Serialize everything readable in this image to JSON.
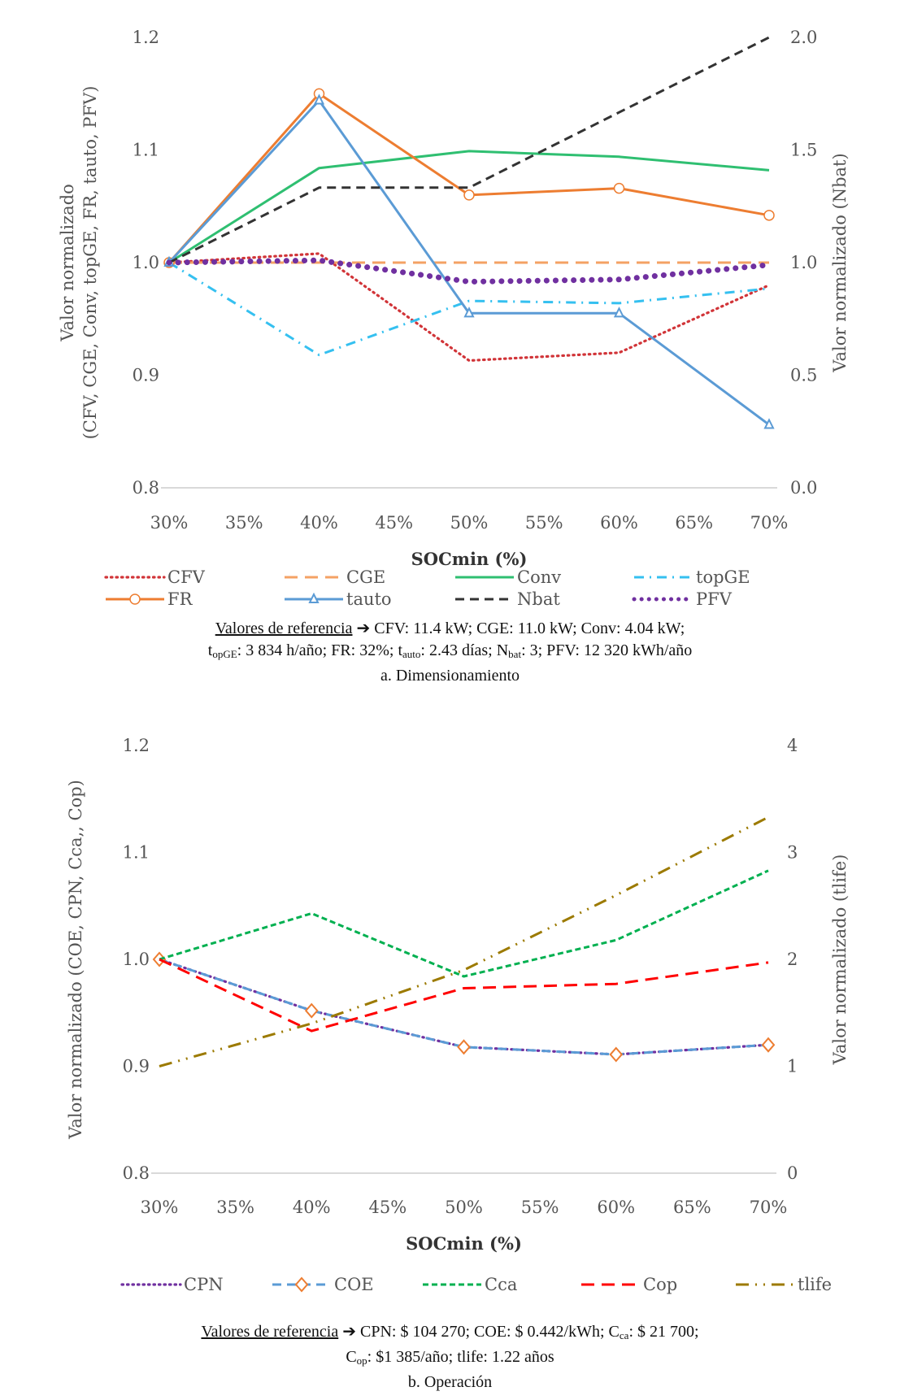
{
  "chart_data": [
    {
      "type": "line",
      "id": "a",
      "caption": "a. Dimensionamiento",
      "xlabel": "SOCmin (%)",
      "ylabel_left": "Valor normalizado",
      "ylabel_left_line2": "(CFV, CGE, Conv, topGE, FR, tauto, PFV)",
      "ylabel_right": "Valor normalizado (Nbat)",
      "x": [
        30,
        40,
        50,
        60,
        70
      ],
      "x_ticks": [
        "30%",
        "35%",
        "40%",
        "45%",
        "50%",
        "55%",
        "60%",
        "65%",
        "70%"
      ],
      "ylim_left": [
        0.8,
        1.2
      ],
      "y_ticks_left": [
        "0.8",
        "0.9",
        "1.0",
        "1.1",
        "1.2"
      ],
      "ylim_right": [
        0.0,
        2.0
      ],
      "y_ticks_right": [
        "0.0",
        "0.5",
        "1.0",
        "1.5",
        "2.0"
      ],
      "legend_position": "bottom",
      "series": [
        {
          "name": "CFV",
          "axis": "left",
          "color": "#d13438",
          "style": "dotted",
          "values": [
            1.0,
            1.008,
            0.913,
            0.92,
            0.98
          ]
        },
        {
          "name": "CGE",
          "axis": "left",
          "color": "#f4a264",
          "style": "longdash",
          "values": [
            1.0,
            1.0,
            1.0,
            1.0,
            1.0
          ]
        },
        {
          "name": "Conv",
          "axis": "left",
          "color": "#2fbf71",
          "style": "solid",
          "values": [
            1.0,
            1.084,
            1.099,
            1.094,
            1.082
          ]
        },
        {
          "name": "topGE",
          "axis": "left",
          "color": "#35c0f0",
          "style": "dashdot",
          "values": [
            1.0,
            0.918,
            0.966,
            0.964,
            0.977
          ]
        },
        {
          "name": "FR",
          "axis": "left",
          "color": "#ed7d31",
          "style": "solid",
          "marker": "circle",
          "values": [
            1.0,
            1.15,
            1.06,
            1.066,
            1.042
          ]
        },
        {
          "name": "tauto",
          "axis": "left",
          "color": "#5b9bd5",
          "style": "solid",
          "marker": "triangle",
          "values": [
            1.0,
            1.144,
            0.955,
            0.955,
            0.856
          ]
        },
        {
          "name": "Nbat",
          "axis": "right",
          "color": "#333333",
          "style": "dash",
          "values": [
            1.0,
            1.333,
            1.333,
            1.667,
            2.0
          ]
        },
        {
          "name": "PFV",
          "axis": "left",
          "color": "#7030a0",
          "style": "bigdots",
          "values": [
            1.0,
            1.002,
            0.983,
            0.985,
            0.998
          ]
        }
      ],
      "reference": {
        "label": "Valores de referencia",
        "line1": "CFV: 11.4 kW; CGE: 11.0 kW; Conv: 4.04 kW;",
        "line2_parts": [
          {
            "t": "t"
          },
          {
            "sub": "opGE"
          },
          {
            "t": ": 3 834 h/año; FR: 32%; t"
          },
          {
            "sub": "auto"
          },
          {
            "t": ": 2.43 días; N"
          },
          {
            "sub": "bat"
          },
          {
            "t": ": 3; PFV: 12 320 kWh/año"
          }
        ]
      }
    },
    {
      "type": "line",
      "id": "b",
      "caption": "b. Operación",
      "xlabel": "SOCmin (%)",
      "ylabel_left": "Valor normalizado (COE, CPN, Cca,, Cop)",
      "ylabel_right": "Valor normalizado (tlife)",
      "x": [
        30,
        40,
        50,
        60,
        70
      ],
      "x_ticks": [
        "30%",
        "35%",
        "40%",
        "45%",
        "50%",
        "55%",
        "60%",
        "65%",
        "70%"
      ],
      "ylim_left": [
        0.8,
        1.2
      ],
      "y_ticks_left": [
        "0.8",
        "0.9",
        "1.0",
        "1.1",
        "1.2"
      ],
      "ylim_right": [
        0,
        4
      ],
      "y_ticks_right": [
        "0",
        "1",
        "2",
        "3",
        "4"
      ],
      "legend_position": "bottom",
      "series": [
        {
          "name": "CPN",
          "axis": "left",
          "color": "#7030a0",
          "style": "dotted",
          "values": [
            1.0,
            0.952,
            0.918,
            0.911,
            0.92
          ]
        },
        {
          "name": "COE",
          "axis": "left",
          "color": "#5b9bd5",
          "style": "dash",
          "marker": "diamond",
          "marker_color": "#ed7d31",
          "values": [
            1.0,
            0.952,
            0.918,
            0.911,
            0.92
          ]
        },
        {
          "name": "Cca",
          "axis": "left",
          "color": "#00b050",
          "style": "shortdash",
          "values": [
            1.0,
            1.043,
            0.984,
            1.018,
            1.083
          ]
        },
        {
          "name": "Cop",
          "axis": "left",
          "color": "#ff0000",
          "style": "longdash",
          "values": [
            1.0,
            0.933,
            0.973,
            0.977,
            0.997
          ]
        },
        {
          "name": "tlife",
          "axis": "right",
          "color": "#9c7a00",
          "style": "dashdotdot",
          "values": [
            1.0,
            1.4,
            1.9,
            2.6,
            3.33
          ]
        }
      ],
      "reference": {
        "label": "Valores de referencia",
        "line1_parts": [
          {
            "t": "CPN: $ 104 270; COE: $ 0.442/kWh; C"
          },
          {
            "sub": "ca"
          },
          {
            "t": ": $ 21 700;"
          }
        ],
        "line2_parts": [
          {
            "t": "C"
          },
          {
            "sub": "op"
          },
          {
            "t": ": $1 385/año; tlife: 1.22 años"
          }
        ]
      }
    }
  ]
}
